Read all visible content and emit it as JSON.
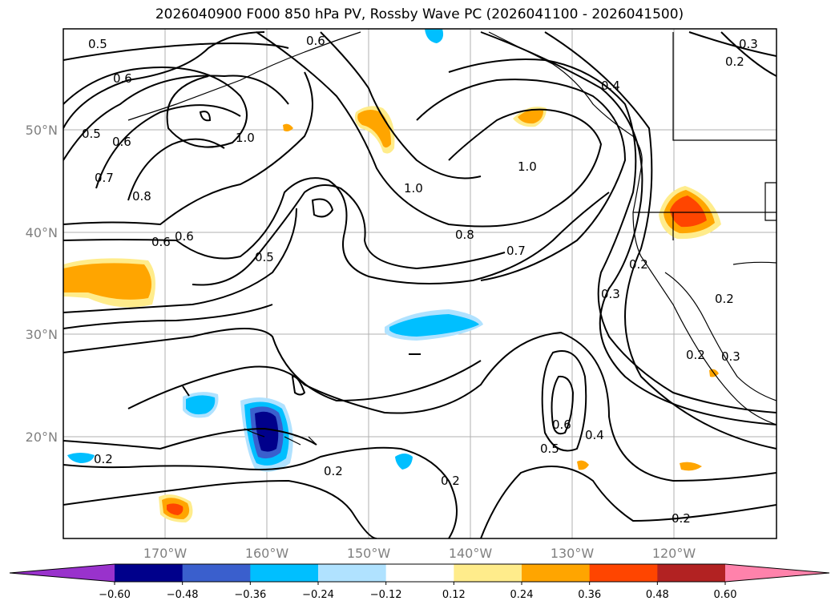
{
  "title": "2026040900 F000 850 hPa PV, Rossby Wave PC (2026041100 - 2026041500)",
  "lat_labels": [
    "50°N",
    "40°N",
    "30°N",
    "20°N"
  ],
  "lon_labels": [
    "170°W",
    "160°W",
    "150°W",
    "140°W",
    "130°W",
    "120°W"
  ],
  "colorbar": {
    "ticks": [
      "−0.60",
      "−0.48",
      "−0.36",
      "−0.24",
      "−0.12",
      "0.12",
      "0.24",
      "0.36",
      "0.48",
      "0.60"
    ],
    "colors": [
      "#9932cc",
      "#00008b",
      "#3a5fcd",
      "#00bfff",
      "#b0e2ff",
      "#ffffff",
      "#ffec8b",
      "#ffa500",
      "#ff4500",
      "#b22222",
      "#ff82ab"
    ]
  },
  "contour_labels": [
    "0.5",
    "0.6",
    "0.6",
    "0.5",
    "0.6",
    "0.7",
    "1.0",
    "0.8",
    "0.6",
    "0.6",
    "0.5",
    "1.0",
    "1.0",
    "0.8",
    "0.7",
    "0.4",
    "0.3",
    "0.2",
    "0.3",
    "0.2",
    "0.2",
    "0.3",
    "0.6",
    "0.5",
    "0.4",
    "0.2",
    "0.2",
    "0.2",
    "0.2",
    "0.2"
  ]
}
